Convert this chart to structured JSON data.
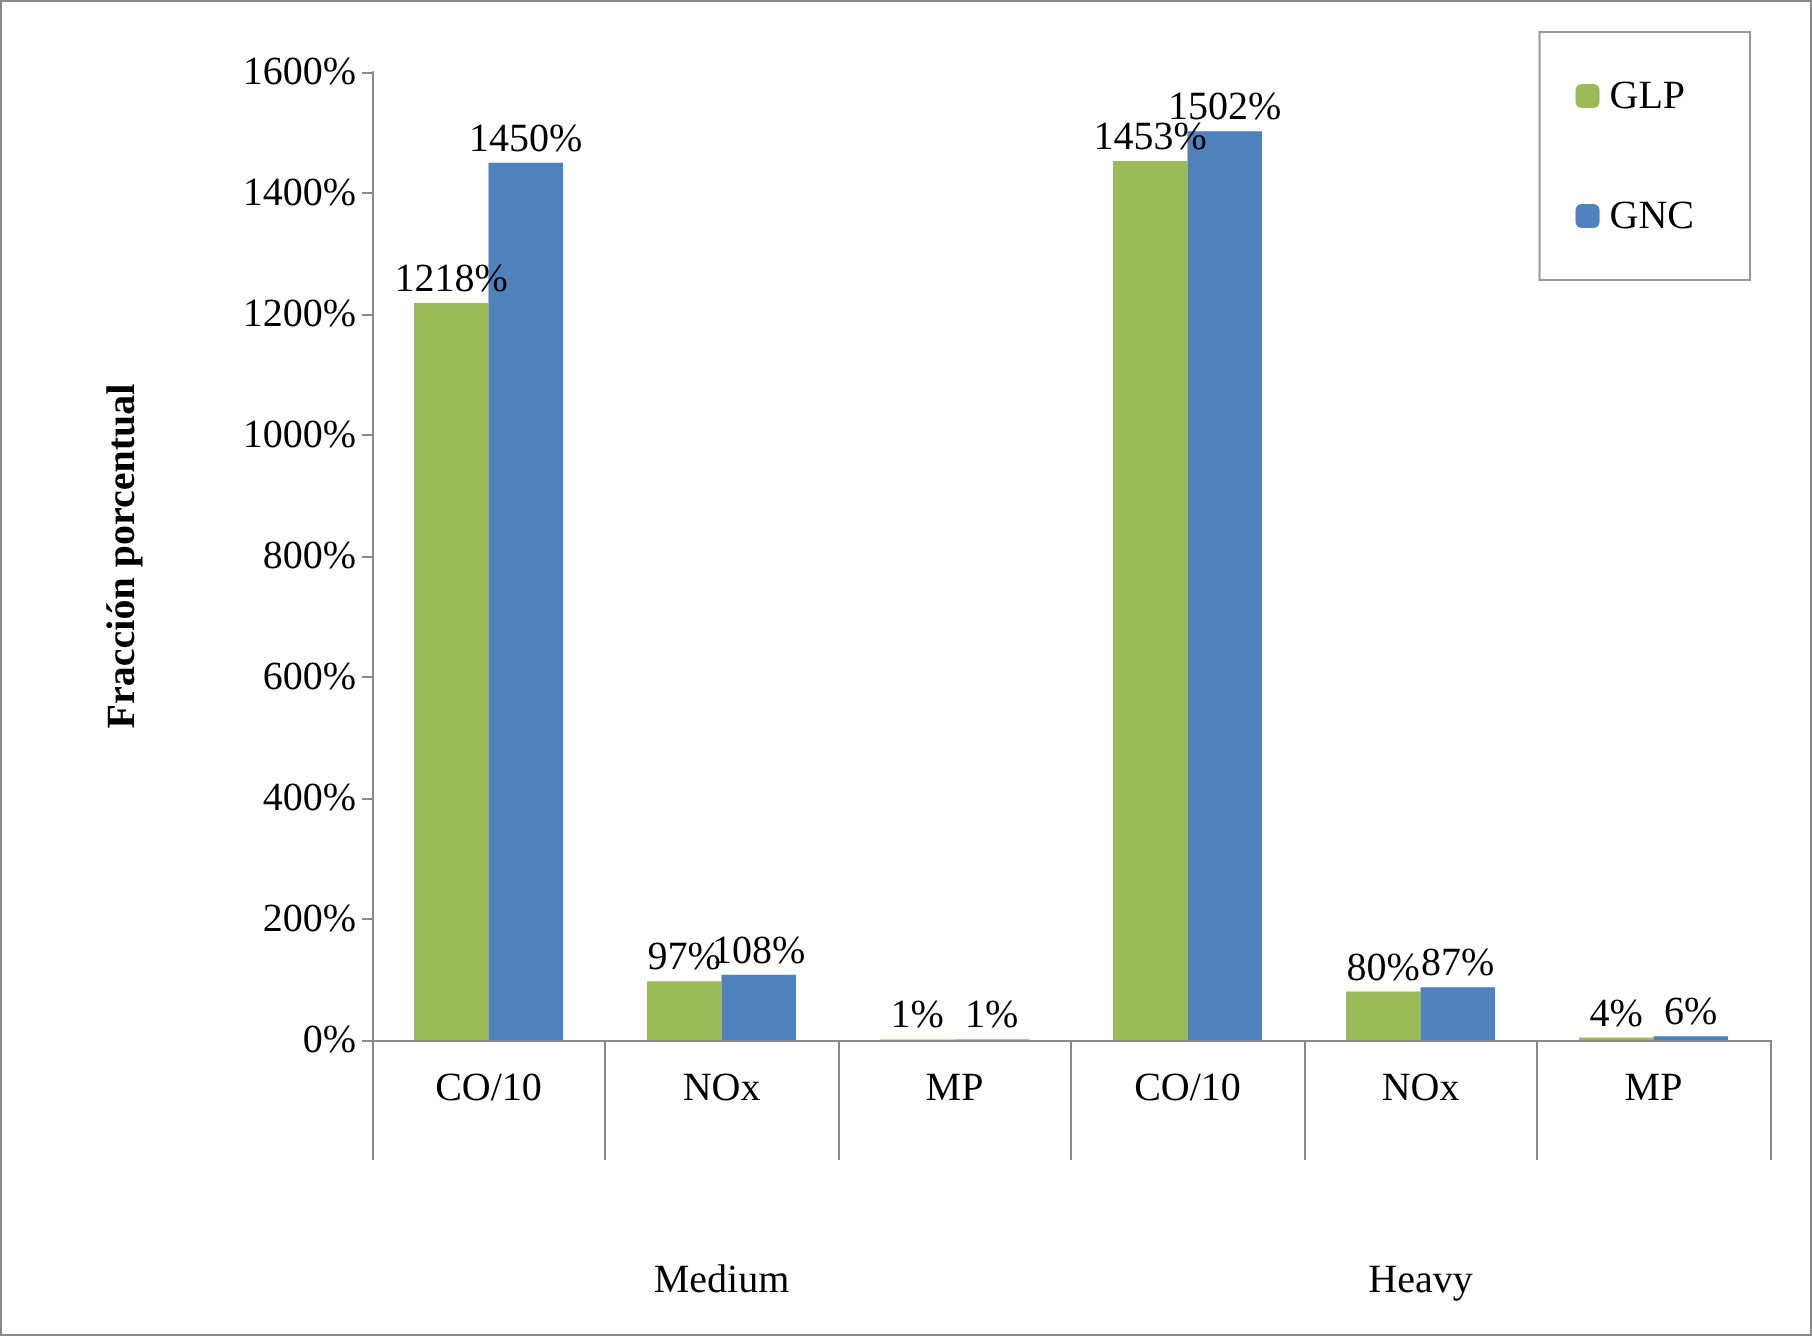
{
  "chart_data": {
    "type": "bar",
    "ylabel": "Fracción porcentual",
    "categories": [
      "CO/10",
      "NOx",
      "MP",
      "CO/10",
      "NOx",
      "MP"
    ],
    "series": [
      {
        "name": "GLP",
        "color": "#9bbb59",
        "values": [
          1218,
          97,
          1,
          1453,
          80,
          4
        ],
        "value_labels": [
          "1218%",
          "97%",
          "1%",
          "1453%",
          "80%",
          "4%"
        ]
      },
      {
        "name": "GNC",
        "color": "#4f81bd",
        "values": [
          1450,
          108,
          1,
          1502,
          87,
          6
        ],
        "value_labels": [
          "1450%",
          "108%",
          "1%",
          "1502%",
          "87%",
          "6%"
        ]
      }
    ],
    "ylim": [
      0,
      1600
    ],
    "yticks": [
      {
        "value": 0,
        "label": "0%"
      },
      {
        "value": 200,
        "label": "200%"
      },
      {
        "value": 400,
        "label": "400%"
      },
      {
        "value": 600,
        "label": "600%"
      },
      {
        "value": 800,
        "label": "800%"
      },
      {
        "value": 1000,
        "label": "1000%"
      },
      {
        "value": 1200,
        "label": "1200%"
      },
      {
        "value": 1400,
        "label": "1400%"
      },
      {
        "value": 1600,
        "label": "1600%"
      }
    ],
    "annotations": [
      "Medium",
      "Heavy"
    ],
    "grid": false,
    "legend": "top right"
  }
}
